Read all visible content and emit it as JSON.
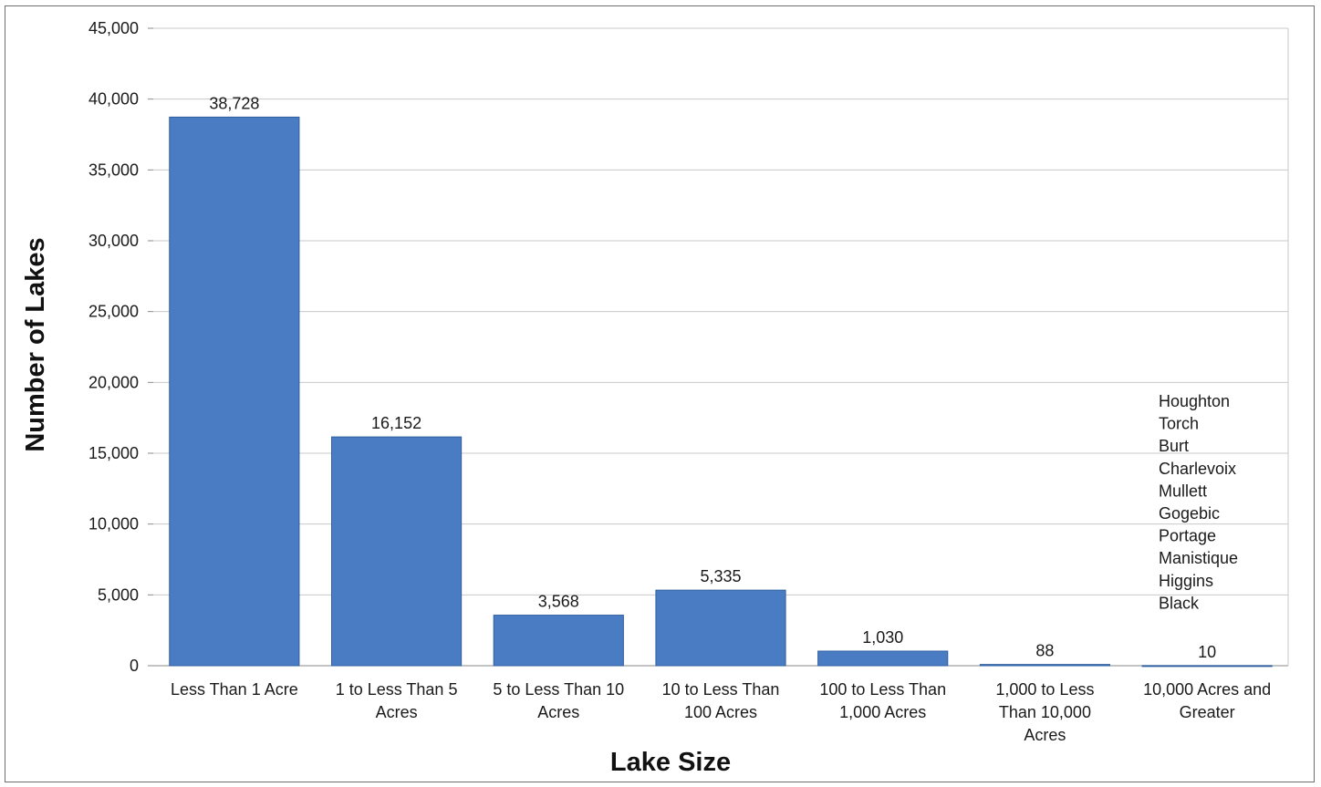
{
  "chart_data": {
    "type": "bar",
    "title": "",
    "xlabel": "Lake Size",
    "ylabel": "Number of Lakes",
    "ylim": [
      0,
      45000
    ],
    "y_ticks": [
      "0",
      "5,000",
      "10,000",
      "15,000",
      "20,000",
      "25,000",
      "30,000",
      "35,000",
      "40,000",
      "45,000"
    ],
    "grid": true,
    "bar_color": "#4a7cc4",
    "categories": [
      [
        "Less Than 1 Acre"
      ],
      [
        "1 to Less Than 5",
        "Acres"
      ],
      [
        "5 to Less Than 10",
        "Acres"
      ],
      [
        "10 to Less Than",
        "100 Acres"
      ],
      [
        "100 to Less Than",
        "1,000 Acres"
      ],
      [
        "1,000 to Less",
        "Than 10,000",
        "Acres"
      ],
      [
        "10,000 Acres and",
        "Greater"
      ]
    ],
    "values": [
      38728,
      16152,
      3568,
      5335,
      1030,
      88,
      10
    ],
    "value_labels": [
      "38,728",
      "16,152",
      "3,568",
      "5,335",
      "1,030",
      "88",
      "10"
    ],
    "annotation_lines": [
      "Houghton",
      "Torch",
      "Burt",
      "Charlevoix",
      "Mullett",
      "Gogebic",
      "Portage",
      "Manistique",
      "Higgins",
      "Black"
    ]
  }
}
